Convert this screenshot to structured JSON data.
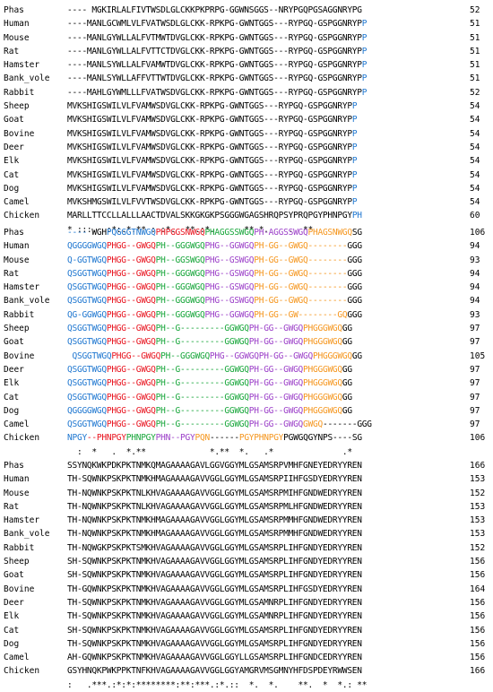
{
  "colors": {
    "blue": "#1f77d0",
    "red": "#e8131e",
    "green": "#17a63a",
    "purple": "#9b3fc8",
    "orange": "#f5961e"
  },
  "blocks": [
    {
      "rows": [
        {
          "name": "Phas",
          "seq": [
            {
              "t": "---- MGKIRLALFIVTWSDLGLCKKPKPRPG-GGWNSGGS--NRYPGQPGSAGGNRYPG"
            }
          ],
          "pos": "52"
        },
        {
          "name": "Human",
          "seq": [
            {
              "t": "----MANLGCWMLVLFVATWSDLGLCKK-RPKPG-GWNTGGS---RYPGQ-GSPGGNRYP"
            },
            {
              "t": "P",
              "c": "blue"
            }
          ],
          "pos": "51"
        },
        {
          "name": "Mouse",
          "seq": [
            {
              "t": "----MANLGYWLLALFVTMWTDVGLCKK-RPKPG-GWNTGGS---RYPGQ-GSPGGNRYP"
            },
            {
              "t": "P",
              "c": "blue"
            }
          ],
          "pos": "51"
        },
        {
          "name": "Rat",
          "seq": [
            {
              "t": "----MANLGYWLLALFVTTCTDVGLCKK-RPKPG-GWNTGGS---RYPGQ-GSPGGNRYP"
            },
            {
              "t": "P",
              "c": "blue"
            }
          ],
          "pos": "51"
        },
        {
          "name": "Hamster",
          "seq": [
            {
              "t": "----MANLSYWLLALFVAMWTDVGLCKK-RPKPG-GWNTGGS---RYPGQ-GSPGGNRYP"
            },
            {
              "t": "P",
              "c": "blue"
            }
          ],
          "pos": "51"
        },
        {
          "name": "Bank_vole",
          "seq": [
            {
              "t": "----MANLSYWLLAFFVTTWTDVGLCKK-RPKPG-GWNTGGS---RYPGQ-GSPGGNRYP"
            },
            {
              "t": "P",
              "c": "blue"
            }
          ],
          "pos": "51"
        },
        {
          "name": "Rabbit",
          "seq": [
            {
              "t": "----MAHLGYWMLLLFVATWSDVGLCKK-RPKPG-GWNTGGS---RYPGQ-GSPGGNRYP"
            },
            {
              "t": "P",
              "c": "blue"
            }
          ],
          "pos": "52"
        },
        {
          "name": "Sheep",
          "seq": [
            {
              "t": "MVKSHIGSWILVLFVAMWSDVGLCKK-RPKPG-GWNTGGS---RYPGQ-GSPGGNRYP"
            },
            {
              "t": "P",
              "c": "blue"
            }
          ],
          "pos": "54"
        },
        {
          "name": "Goat",
          "seq": [
            {
              "t": "MVKSHIGSWILVLFVAMWSDVGLCKK-RPKPG-GWNTGGS---RYPGQ-GSPGGNRYP"
            },
            {
              "t": "P",
              "c": "blue"
            }
          ],
          "pos": "54"
        },
        {
          "name": "Bovine",
          "seq": [
            {
              "t": "MVKSHIGSWILVLFVAMWSDVGLCKK-RPKPG-GWNTGGS---RYPGQ-GSPGGNRYP"
            },
            {
              "t": "P",
              "c": "blue"
            }
          ],
          "pos": "54"
        },
        {
          "name": "Deer",
          "seq": [
            {
              "t": "MVKSHIGSWILVLFVAMWSDVGLCKK-RPKPG-GWNTGGS---RYPGQ-GSPGGNRYP"
            },
            {
              "t": "P",
              "c": "blue"
            }
          ],
          "pos": "54"
        },
        {
          "name": "Elk",
          "seq": [
            {
              "t": "MVKSHIGSWILVLFVAMWSDVGLCKK-RPKPG-GWNTGGS---RYPGQ-GSPGGNRYP"
            },
            {
              "t": "P",
              "c": "blue"
            }
          ],
          "pos": "54"
        },
        {
          "name": "Cat",
          "seq": [
            {
              "t": "MVKSHIGSWILVLFVAMWSDVGLCKK-RPKPG-GWNTGGS---RYPGQ-GSPGGNRYP"
            },
            {
              "t": "P",
              "c": "blue"
            }
          ],
          "pos": "54"
        },
        {
          "name": "Dog",
          "seq": [
            {
              "t": "MVKSHIGSWILVLFVAMWSDVGLCKK-RPKPG-GWNTGGS---RYPGQ-GSPGGNRYP"
            },
            {
              "t": "P",
              "c": "blue"
            }
          ],
          "pos": "54"
        },
        {
          "name": "Camel",
          "seq": [
            {
              "t": "MVKSHMGSWILVLFVVTWSDVGLCKK-RPKPG-GWNTGGS---RYPGQ-GSPGGNRYP"
            },
            {
              "t": "P",
              "c": "blue"
            }
          ],
          "pos": "54"
        },
        {
          "name": "Chicken",
          "seq": [
            {
              "t": "MARLLTTCCLLALLLAACTDVALSKKGKGKPSGGGWGAGSHRQPSYPRQPGYPHNPGY"
            },
            {
              "t": "PH",
              "c": "blue"
            }
          ],
          "pos": "60"
        }
      ],
      "consensus": "* :::.  :*:.*.** : :*.  **.:*.      ** *.    .  **"
    },
    {
      "rows": [
        {
          "name": "Phas",
          "seq": [
            {
              "t": "----",
              "c": "blue"
            },
            {
              "t": " WGH"
            },
            {
              "t": "PQGGGTNWGQ",
              "c": "blue"
            },
            {
              "t": "PHPGGSNWGQ",
              "c": "red"
            },
            {
              "t": "PHAGGSSWGQ",
              "c": "green"
            },
            {
              "t": "PH-AGGSSWGQ",
              "c": "purple"
            },
            {
              "t": "PHAGSNWGQ",
              "c": "orange"
            },
            {
              "t": "SG"
            }
          ],
          "pos": "106"
        },
        {
          "name": "Human",
          "seq": [
            {
              "t": "QGGGGWGQ",
              "c": "blue"
            },
            {
              "t": "PHGG--GWGQ",
              "c": "red"
            },
            {
              "t": "PH--GGGWGQ",
              "c": "green"
            },
            {
              "t": "PHG--GGWGQ",
              "c": "purple"
            },
            {
              "t": "PH-GG--GWGQ--------",
              "c": "orange"
            },
            {
              "t": "GGG"
            }
          ],
          "pos": "94"
        },
        {
          "name": "Mouse",
          "seq": [
            {
              "t": "Q-GGTWGQ",
              "c": "blue"
            },
            {
              "t": "PHGG--GWGQ",
              "c": "red"
            },
            {
              "t": "PH--GGSWGQ",
              "c": "green"
            },
            {
              "t": "PHG--GSWGQ",
              "c": "purple"
            },
            {
              "t": "PH-GG--GWGQ--------",
              "c": "orange"
            },
            {
              "t": "GGG"
            }
          ],
          "pos": "93"
        },
        {
          "name": "Rat",
          "seq": [
            {
              "t": "QSGGTWGQ",
              "c": "blue"
            },
            {
              "t": "PHGG--GWGQ",
              "c": "red"
            },
            {
              "t": "PH--GGGWGQ",
              "c": "green"
            },
            {
              "t": "PHG--GSWGQ",
              "c": "purple"
            },
            {
              "t": "PH-GG--GWGQ--------",
              "c": "orange"
            },
            {
              "t": "GGG"
            }
          ],
          "pos": "94"
        },
        {
          "name": "Hamster",
          "seq": [
            {
              "t": "QSGGTWGQ",
              "c": "blue"
            },
            {
              "t": "PHGG--GWGQ",
              "c": "red"
            },
            {
              "t": "PH--GGGWGQ",
              "c": "green"
            },
            {
              "t": "PHG--GSWGQ",
              "c": "purple"
            },
            {
              "t": "PH-GG--GWGQ--------",
              "c": "orange"
            },
            {
              "t": "GGG"
            }
          ],
          "pos": "94"
        },
        {
          "name": "Bank_vole",
          "seq": [
            {
              "t": "QSGGTWGQ",
              "c": "blue"
            },
            {
              "t": "PHGG--GWGQ",
              "c": "red"
            },
            {
              "t": "PH--GGGWGQ",
              "c": "green"
            },
            {
              "t": "PHG--GSWGQ",
              "c": "purple"
            },
            {
              "t": "PH-GG--GWGQ--------",
              "c": "orange"
            },
            {
              "t": "GGG"
            }
          ],
          "pos": "94"
        },
        {
          "name": "Rabbit",
          "seq": [
            {
              "t": "QG-GGWGQ",
              "c": "blue"
            },
            {
              "t": "PHGG--GWGQ",
              "c": "red"
            },
            {
              "t": "PH--GGGWGQ",
              "c": "green"
            },
            {
              "t": "PHG--GGWGQ",
              "c": "purple"
            },
            {
              "t": "PH-GG--GW--------",
              "c": "orange"
            },
            {
              "t": "GQ",
              "c": "orange"
            },
            {
              "t": "GGG"
            }
          ],
          "pos": "93"
        },
        {
          "name": "Sheep",
          "seq": [
            {
              "t": "QSGGTWGQ",
              "c": "blue"
            },
            {
              "t": "PHGG--GWGQ",
              "c": "red"
            },
            {
              "t": "PH--G---------",
              "c": "green"
            },
            {
              "t": "GGWGQ",
              "c": "green"
            },
            {
              "t": "PH-GG--GWGQ",
              "c": "purple"
            },
            {
              "t": "PHGGGWGQ",
              "c": "orange"
            },
            {
              "t": "GG"
            }
          ],
          "pos": "97"
        },
        {
          "name": "Goat",
          "seq": [
            {
              "t": "QSGGTWGQ",
              "c": "blue"
            },
            {
              "t": "PHGG--GWGQ",
              "c": "red"
            },
            {
              "t": "PH--G---------",
              "c": "green"
            },
            {
              "t": "GGWGQ",
              "c": "green"
            },
            {
              "t": "PH-GG--GWGQ",
              "c": "purple"
            },
            {
              "t": "PHGGGWGQ",
              "c": "orange"
            },
            {
              "t": "GG"
            }
          ],
          "pos": "97"
        },
        {
          "name": "Bovine",
          "seq": [
            {
              "t": " QSGGTWGQ",
              "c": "blue"
            },
            {
              "t": "PHGG--GWGQ",
              "c": "red"
            },
            {
              "t": "PH--GGGWGQ",
              "c": "green"
            },
            {
              "t": "PHG--GGWGQ",
              "c": "purple"
            },
            {
              "t": "PH-GG--GWGQ",
              "c": "purple"
            },
            {
              "t": "PHGGGWGQ",
              "c": "orange"
            },
            {
              "t": "GG"
            }
          ],
          "pos": "105"
        },
        {
          "name": "Deer",
          "seq": [
            {
              "t": "QSGGTWGQ",
              "c": "blue"
            },
            {
              "t": "PHGG--GWGQ",
              "c": "red"
            },
            {
              "t": "PH--G---------",
              "c": "green"
            },
            {
              "t": "GGWGQ",
              "c": "green"
            },
            {
              "t": "PH-GG--GWGQ",
              "c": "purple"
            },
            {
              "t": "PHGGGWGQ",
              "c": "orange"
            },
            {
              "t": "GG"
            }
          ],
          "pos": "97"
        },
        {
          "name": "Elk",
          "seq": [
            {
              "t": "QSGGTWGQ",
              "c": "blue"
            },
            {
              "t": "PHGG--GWGQ",
              "c": "red"
            },
            {
              "t": "PH--G---------",
              "c": "green"
            },
            {
              "t": "GGWGQ",
              "c": "green"
            },
            {
              "t": "PH-GG--GWGQ",
              "c": "purple"
            },
            {
              "t": "PHGGGWGQ",
              "c": "orange"
            },
            {
              "t": "GG"
            }
          ],
          "pos": "97"
        },
        {
          "name": "Cat",
          "seq": [
            {
              "t": "QSGGTWGQ",
              "c": "blue"
            },
            {
              "t": "PHGG--GWGQ",
              "c": "red"
            },
            {
              "t": "PH--G---------",
              "c": "green"
            },
            {
              "t": "GGWGQ",
              "c": "green"
            },
            {
              "t": "PH-GG--GWGQ",
              "c": "purple"
            },
            {
              "t": "PHGGGWGQ",
              "c": "orange"
            },
            {
              "t": "GG"
            }
          ],
          "pos": "97"
        },
        {
          "name": "Dog",
          "seq": [
            {
              "t": "QGGGGWGQ",
              "c": "blue"
            },
            {
              "t": "PHGG--GWGQ",
              "c": "red"
            },
            {
              "t": "PH--G---------",
              "c": "green"
            },
            {
              "t": "GGWGQ",
              "c": "green"
            },
            {
              "t": "PH-GG--GWGQ",
              "c": "purple"
            },
            {
              "t": "PHGGGWGQ",
              "c": "orange"
            },
            {
              "t": "GG"
            }
          ],
          "pos": "97"
        },
        {
          "name": "Camel",
          "seq": [
            {
              "t": "QSGGTWGQ",
              "c": "blue"
            },
            {
              "t": "PHGG--GWGQ",
              "c": "red"
            },
            {
              "t": "PH--G---------",
              "c": "green"
            },
            {
              "t": "GGWGQ",
              "c": "green"
            },
            {
              "t": "PH-GG--GWGQ",
              "c": "purple"
            },
            {
              "t": "GWGQ",
              "c": "orange"
            },
            {
              "t": "-------GGG"
            }
          ],
          "pos": "97"
        },
        {
          "name": "Chicken",
          "seq": [
            {
              "t": "NPGY",
              "c": "blue"
            },
            {
              "t": "--PHNPGY",
              "c": "red"
            },
            {
              "t": "PHNPGY",
              "c": "green"
            },
            {
              "t": "PHN--PGY",
              "c": "purple"
            },
            {
              "t": "PQN",
              "c": "orange"
            },
            {
              "t": "------"
            },
            {
              "t": "PGYPHNPGY",
              "c": "orange"
            },
            {
              "t": "PGWGQGYNPS----SG"
            }
          ],
          "pos": "106"
        }
      ],
      "consensus": "  :  *   .  *.**             *.**  *.   .*              .*"
    },
    {
      "rows": [
        {
          "name": "Phas",
          "seq": [
            {
              "t": "SSYNQKWKPDKPKTNMKQMAGAAAAGAVLGGVGGYMLGSAMSRPVMHFGNEYEDRYYREN"
            }
          ],
          "pos": "166"
        },
        {
          "name": "Human",
          "seq": [
            {
              "t": "TH-SQWNKPSKPKTNMKHMAGAAAAGAVVGGLGGYMLGSAMSRPIIHFGSDYEDRYYREN"
            }
          ],
          "pos": "153"
        },
        {
          "name": "Mouse",
          "seq": [
            {
              "t": "TH-NQWNKPSKPKTNLKHVAGAAAAGAVVGGLGGYMLGSAMSRPMIHFGNDWEDRYYREN"
            }
          ],
          "pos": "152"
        },
        {
          "name": "Rat",
          "seq": [
            {
              "t": "TH-NQWNKPSKPKTNLKHVAGAAAAGAVVGGLGGYMLGSAMSRPMLHFGNDWEDRYYREN"
            }
          ],
          "pos": "153"
        },
        {
          "name": "Hamster",
          "seq": [
            {
              "t": "TH-NQWNKPSKPKTNMKHMAGAAAAGAVVGGLGGYMLGSAMSRPMMHFGNDWEDRYYREN"
            }
          ],
          "pos": "153"
        },
        {
          "name": "Bank_vole",
          "seq": [
            {
              "t": "TH-NQWNKPSKPKTNMKHMAGAAAAGAVVGGLGGYMLGSAMSRPMMHFGNDWEDRYYREN"
            }
          ],
          "pos": "153"
        },
        {
          "name": "Rabbit",
          "seq": [
            {
              "t": "TH-NQWGKPSKPKTSMKHVAGAAAAGAVVGGLGGYMLGSAMSRPLIHFGNDYEDRYYREN"
            }
          ],
          "pos": "152"
        },
        {
          "name": "Sheep",
          "seq": [
            {
              "t": "SH-SQWNKPSKPKTNMKHVAGAAAAGAVVGGLGGYMLGSAMSRPLIHFGNDYEDRYYREN"
            }
          ],
          "pos": "156"
        },
        {
          "name": "Goat",
          "seq": [
            {
              "t": "SH-SQWNKPSKPKTNMKHVAGAAAAGAVVGGLGGYMLGSAMSRPLIHFGNDYEDRYYREN"
            }
          ],
          "pos": "156"
        },
        {
          "name": "Bovine",
          "seq": [
            {
              "t": "TH-GQWNKPSKPKTNMKHVAGAAAAGAVVGGLGGYMLGSAMSRPLIHFGSDYEDRYYREN"
            }
          ],
          "pos": "164"
        },
        {
          "name": "Deer",
          "seq": [
            {
              "t": "TH-SQWNKPSKPKTNMKHVAGAAAAGAVVGGLGGYMLGSAMNRPLIHFGNDYEDRYYREN"
            }
          ],
          "pos": "156"
        },
        {
          "name": "Elk",
          "seq": [
            {
              "t": "TH-SQWNKPSKPKTNMKHVAGAAAAGAVVGGLGGYMLGSAMNRPLIHFGNDYEDRYYREN"
            }
          ],
          "pos": "156"
        },
        {
          "name": "Cat",
          "seq": [
            {
              "t": "SH-SQWNKPSKPKTNMKHVAGAAAAGAVVGGLGGYMLGSAMSRPLIHFGNDYEDRYYREN"
            }
          ],
          "pos": "156"
        },
        {
          "name": "Dog",
          "seq": [
            {
              "t": "TH-SQWNKPSKPKTNMKHVAGAAAAGAVVGGLGGYMLGSAMSRPLIHFGNDYEDRYYREN"
            }
          ],
          "pos": "156"
        },
        {
          "name": "Camel",
          "seq": [
            {
              "t": "AH-GQWNKPSKPKTNMKHVAGAAAAGAVVGGLGGYLLGSAMSRPLIHFGNDCEDRYYREN"
            }
          ],
          "pos": "156"
        },
        {
          "name": "Chicken",
          "seq": [
            {
              "t": "GSYHNQKPWKPPKTNFKHVAGAAAAGAVVGGLGGYAMGRVMSGMNYHFDSPDEYRWWSEN"
            }
          ],
          "pos": "166"
        }
      ],
      "consensus": ":   .***.:*:*:********:**:***.:*.::  *.  *.    **.  *  *.: **"
    }
  ]
}
